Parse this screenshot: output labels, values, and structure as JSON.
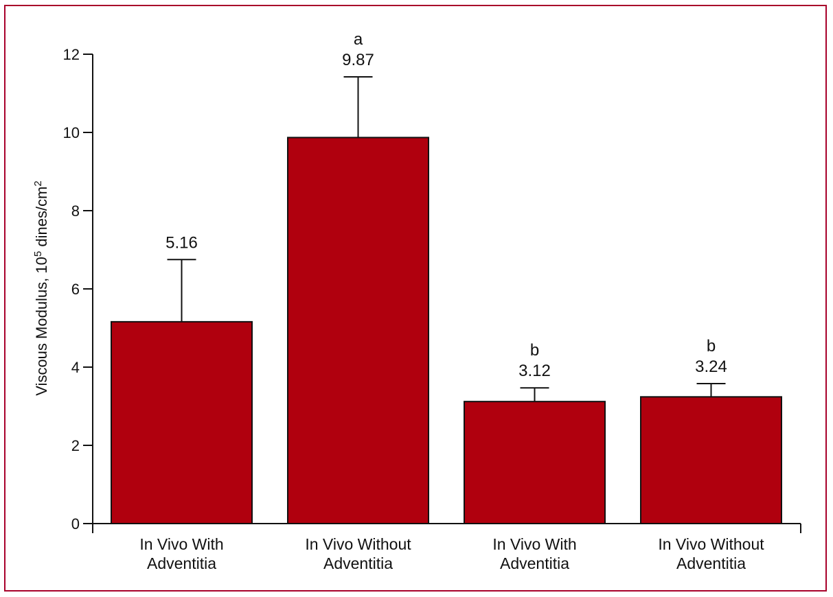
{
  "chart_data": {
    "type": "bar",
    "categories": [
      [
        "In Vivo With",
        "Adventitia"
      ],
      [
        "In Vivo Without",
        "Adventitia"
      ],
      [
        "In Vivo With",
        "Adventitia"
      ],
      [
        "In Vivo Without",
        "Adventitia"
      ]
    ],
    "values": [
      5.16,
      9.87,
      3.12,
      3.24
    ],
    "error_upper": [
      6.75,
      11.42,
      3.47,
      3.58
    ],
    "value_labels": [
      "5.16",
      "9.87",
      "3.12",
      "3.24"
    ],
    "significance_labels": [
      "",
      "a",
      "b",
      "b"
    ],
    "ylabel": "Viscous Modulus, 10",
    "ylabel_superscript": "5",
    "ylabel_unit": " dines/cm",
    "ylabel_unit_superscript": "2",
    "ylim": [
      0,
      12
    ],
    "yticks": [
      0,
      2,
      4,
      6,
      8,
      10,
      12
    ],
    "bar_color": "#b0000e",
    "frame_color": "#a8002a",
    "grid": false
  }
}
